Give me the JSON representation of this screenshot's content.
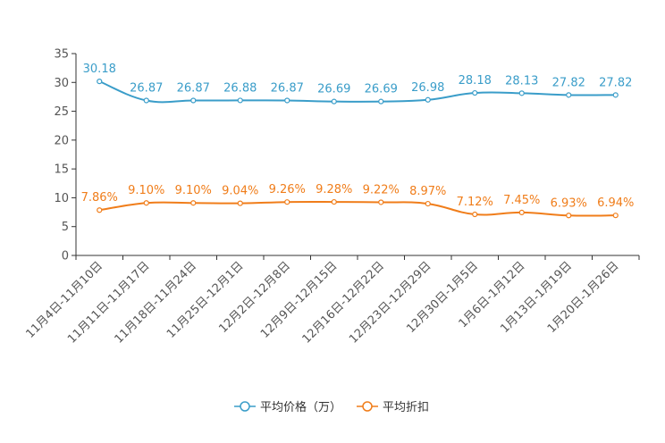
{
  "chart_data": {
    "type": "line",
    "categories": [
      "11月4日-11月10日",
      "11月11日-11月17日",
      "11月18日-11月24日",
      "11月25日-12月1日",
      "12月2日-12月8日",
      "12月9日-12月15日",
      "12月16日-12月22日",
      "12月23日-12月29日",
      "12月30日-1月5日",
      "1月6日-1月12日",
      "1月13日-1月19日",
      "1月20日-1月26日"
    ],
    "series": [
      {
        "name": "平均价格（万）",
        "color": "#3a9dc9",
        "values": [
          30.18,
          26.87,
          26.87,
          26.88,
          26.87,
          26.69,
          26.69,
          26.98,
          28.18,
          28.13,
          27.82,
          27.82
        ],
        "labels": [
          "30.18",
          "26.87",
          "26.87",
          "26.88",
          "26.87",
          "26.69",
          "26.69",
          "26.98",
          "28.18",
          "28.13",
          "27.82",
          "27.82"
        ]
      },
      {
        "name": "平均折扣",
        "color": "#f07d1a",
        "values": [
          7.86,
          9.1,
          9.1,
          9.04,
          9.26,
          9.28,
          9.22,
          8.97,
          7.12,
          7.45,
          6.93,
          6.94
        ],
        "labels": [
          "7.86%",
          "9.10%",
          "9.10%",
          "9.04%",
          "9.26%",
          "9.28%",
          "9.22%",
          "8.97%",
          "7.12%",
          "7.45%",
          "6.93%",
          "6.94%"
        ]
      }
    ],
    "yticks": [
      "0",
      "5",
      "10",
      "15",
      "20",
      "25",
      "30",
      "35"
    ],
    "ylim": [
      0,
      35
    ],
    "title": "",
    "xlabel": "",
    "ylabel": "",
    "legend_position": "bottom-center",
    "grid": false
  }
}
